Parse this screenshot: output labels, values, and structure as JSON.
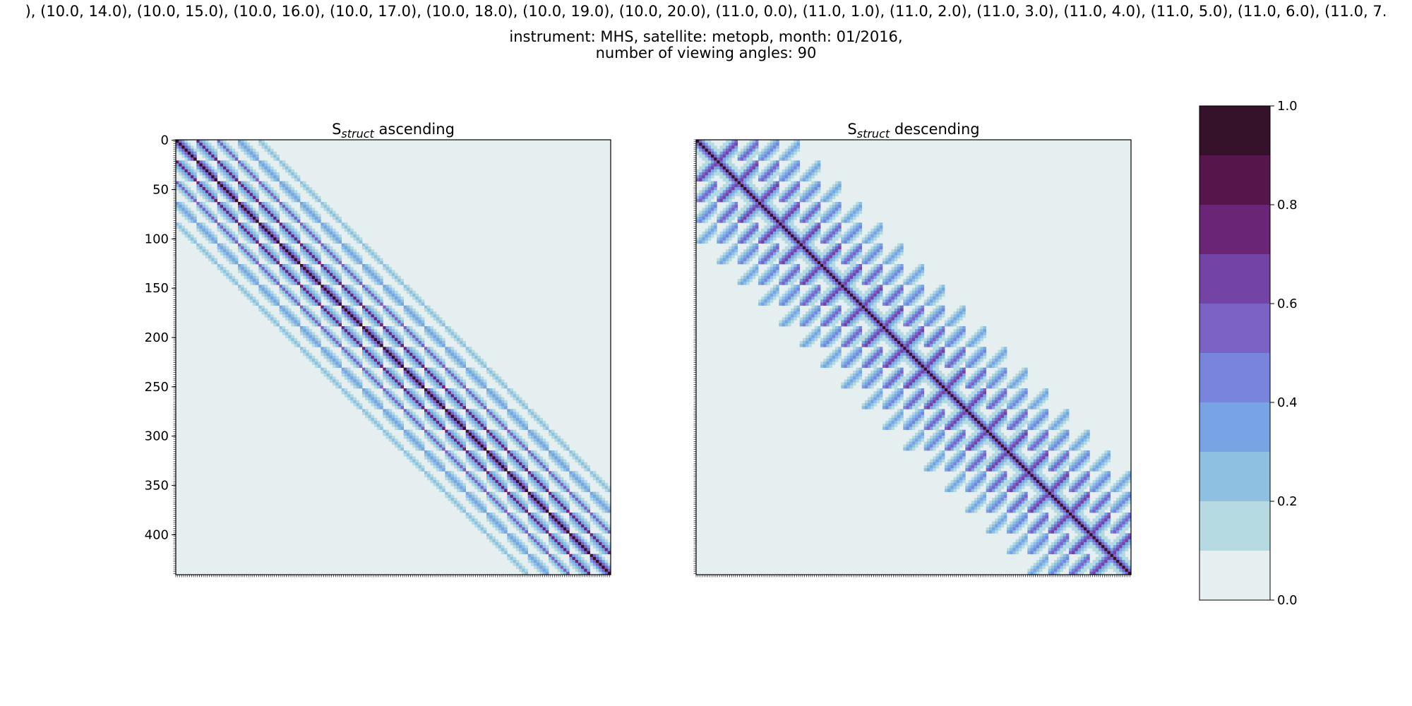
{
  "figure": {
    "title_lines": [
      "), (10.0, 14.0), (10.0, 15.0), (10.0, 16.0), (10.0, 17.0), (10.0, 18.0), (10.0, 19.0), (10.0, 20.0), (11.0, 0.0), (11.0, 1.0), (11.0, 2.0), (11.0, 3.0), (11.0, 4.0), (11.0, 5.0), (11.0, 6.0), (11.0, 7.",
      "instrument: MHS, satellite: metopb, month: 01/2016,",
      "number of viewing angles: 90"
    ]
  },
  "chart_data": [
    {
      "type": "heatmap",
      "title": "S",
      "title_subscript": "struct",
      "title_suffix": " ascending",
      "matrix_size": 441,
      "block_size": 21,
      "diagonal_stripe_offsets_blocks": [
        0,
        1,
        2,
        3,
        4
      ],
      "value_range": [
        0.0,
        1.0
      ],
      "y_ticks": [
        0,
        50,
        100,
        150,
        200,
        250,
        300,
        350,
        400
      ],
      "x_ticks_labeled": false,
      "colorbar": "shared"
    },
    {
      "type": "heatmap",
      "title": "S",
      "title_subscript": "struct",
      "title_suffix": " descending",
      "matrix_size": 441,
      "block_size": 21,
      "diagonal_stripe_offsets_blocks": [
        0,
        1,
        2,
        3,
        4
      ],
      "value_range": [
        0.0,
        1.0
      ],
      "y_ticks": [],
      "x_ticks_labeled": false,
      "colorbar": "shared"
    }
  ],
  "colorbar": {
    "levels": [
      0.0,
      0.1,
      0.2,
      0.3,
      0.4,
      0.5,
      0.6,
      0.7,
      0.8,
      0.9,
      1.0
    ],
    "tick_values": [
      0.0,
      0.2,
      0.4,
      0.6,
      0.8,
      1.0
    ],
    "tick_labels": [
      "0.0",
      "0.2",
      "0.4",
      "0.6",
      "0.8",
      "1.0"
    ],
    "colors": [
      "#e5efef",
      "#b6dae2",
      "#8ec0e2",
      "#78a3e5",
      "#7984dd",
      "#7b63c6",
      "#7443a6",
      "#6b2577",
      "#56164c",
      "#35122a"
    ]
  }
}
